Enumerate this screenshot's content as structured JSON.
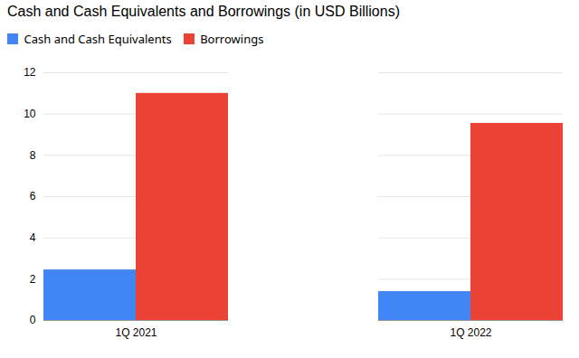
{
  "chart_data": {
    "type": "bar",
    "title": "Cash and Cash Equivalents and Borrowings (in USD Billions)",
    "categories": [
      "1Q 2021",
      "1Q 2022"
    ],
    "series": [
      {
        "name": "Cash and Cash Equivalents",
        "color": "#4285F4",
        "values": [
          2.45,
          1.4
        ]
      },
      {
        "name": "Borrowings",
        "color": "#EA4335",
        "values": [
          11.0,
          9.55
        ]
      }
    ],
    "ylim": [
      0,
      12
    ],
    "yticks": [
      0,
      2,
      4,
      6,
      8,
      10,
      12
    ],
    "grid": true,
    "legend": "top"
  }
}
